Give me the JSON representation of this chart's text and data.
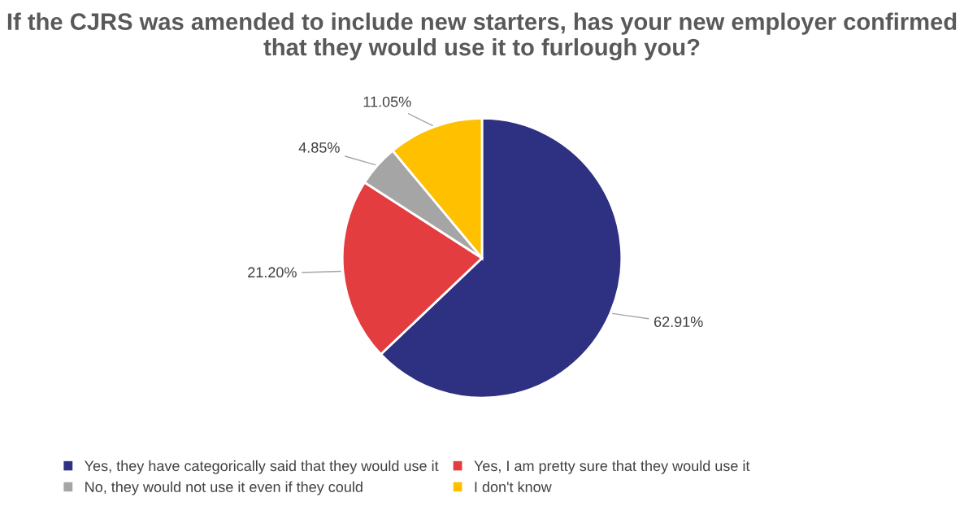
{
  "chart_data": {
    "type": "pie",
    "title": "If the CJRS was amended to include new starters, has your new employer confirmed that they would use it to furlough you?",
    "categories": [
      "Yes, they have categorically said that they would use it",
      "Yes, I am pretty sure that they would use it",
      "No, they would not use it even if they could",
      "I don't know"
    ],
    "values": [
      62.91,
      21.2,
      4.85,
      11.05
    ],
    "value_labels": [
      "62.91%",
      "21.20%",
      "4.85%",
      "11.05%"
    ],
    "colors": [
      "#2e3082",
      "#e43d40",
      "#a5a5a5",
      "#ffc000"
    ],
    "legend": "bottom"
  }
}
